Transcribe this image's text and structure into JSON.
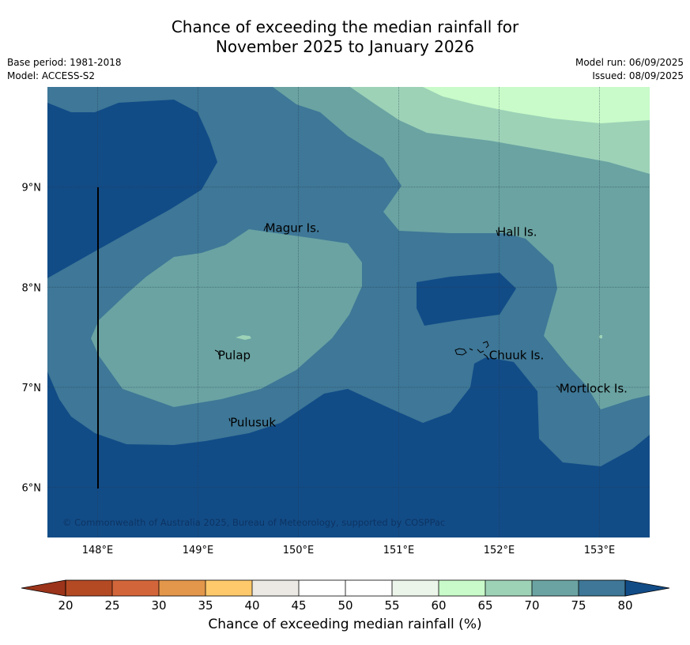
{
  "title": {
    "line1": "Chance of exceeding the median rainfall for",
    "line2": "November 2025 to January 2026"
  },
  "meta_left": {
    "base_period": "Base period: 1981-2018",
    "model": "Model: ACCESS-S2"
  },
  "meta_right": {
    "model_run": "Model run: 06/09/2025",
    "issued": "Issued: 08/09/2025"
  },
  "map": {
    "lon_range": [
      147.5,
      153.5
    ],
    "lat_range": [
      5.5,
      10.0
    ],
    "lon_ticks": [
      {
        "value": 148,
        "label": "148°E"
      },
      {
        "value": 149,
        "label": "149°E"
      },
      {
        "value": 150,
        "label": "150°E"
      },
      {
        "value": 151,
        "label": "151°E"
      },
      {
        "value": 152,
        "label": "152°E"
      },
      {
        "value": 153,
        "label": "153°E"
      }
    ],
    "lat_ticks": [
      {
        "value": 9,
        "label": "9°N"
      },
      {
        "value": 8,
        "label": "8°N"
      },
      {
        "value": 7,
        "label": "7°N"
      },
      {
        "value": 6,
        "label": "6°N"
      }
    ],
    "grid": true,
    "places": [
      {
        "name": "Magur Is.",
        "lon": 149.67,
        "lat": 8.55
      },
      {
        "name": "Hall Is.",
        "lon": 151.98,
        "lat": 8.51
      },
      {
        "name": "Pulap",
        "lon": 149.2,
        "lat": 7.28
      },
      {
        "name": "Chuuk Is.",
        "lon": 151.9,
        "lat": 7.28
      },
      {
        "name": "Mortlock Is.",
        "lon": 152.6,
        "lat": 6.95
      },
      {
        "name": "Pulusuk",
        "lon": 149.32,
        "lat": 6.61
      }
    ],
    "copyright": "© Commonwealth of Australia 2025, Bureau of Meteorology, supported by COSPPac"
  },
  "colorbar": {
    "label": "Chance of exceeding median rainfall (%)",
    "ticks": [
      "20",
      "25",
      "30",
      "35",
      "40",
      "45",
      "50",
      "55",
      "60",
      "65",
      "70",
      "75",
      "80"
    ],
    "colors": [
      "#b34a24",
      "#d2663a",
      "#e3974a",
      "#fdc96b",
      "#ece8e3",
      "#ffffff",
      "#ffffff",
      "#ecf5ea",
      "#c8fbc9",
      "#9dd2b7",
      "#6aa3a2",
      "#3e7797"
    ],
    "under_color": "#9b341a",
    "over_color": "#124c87"
  },
  "palette": {
    "zone_80": "#124c87",
    "zone_75": "#3e7797",
    "zone_70": "#6aa3a2",
    "zone_65": "#9dd2b7",
    "zone_60": "#c8fbc9"
  }
}
